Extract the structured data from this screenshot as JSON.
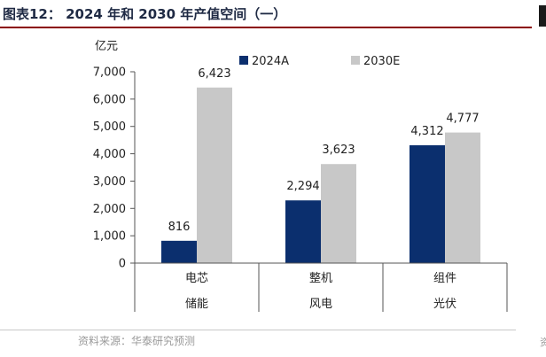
{
  "figure": {
    "title": "图表12：  2024 年和 2030 年产值空间（一）",
    "source": "资料来源：华泰研究预测",
    "right_edge_text": "资"
  },
  "colors": {
    "series_2024": "#0b2f6e",
    "series_2030": "#c8c8c8",
    "title_rule": "#8b0000",
    "axis": "#555555"
  },
  "chart_data": {
    "type": "bar",
    "unit_label": "亿元",
    "ylim": [
      0,
      7000
    ],
    "yticks": [
      0,
      1000,
      2000,
      3000,
      4000,
      5000,
      6000,
      7000
    ],
    "ytick_labels": [
      "0",
      "1,000",
      "2,000",
      "3,000",
      "4,000",
      "5,000",
      "6,000",
      "7,000"
    ],
    "categories": [
      {
        "top": "电芯",
        "bottom": "储能"
      },
      {
        "top": "整机",
        "bottom": "风电"
      },
      {
        "top": "组件",
        "bottom": "光伏"
      }
    ],
    "series": [
      {
        "name": "2024A",
        "values": [
          816,
          2294,
          4312
        ],
        "labels": [
          "816",
          "2,294",
          "4,312"
        ]
      },
      {
        "name": "2030E",
        "values": [
          6423,
          3623,
          4777
        ],
        "labels": [
          "6,423",
          "3,623",
          "4,777"
        ]
      }
    ],
    "legend": "top",
    "grid": false
  }
}
